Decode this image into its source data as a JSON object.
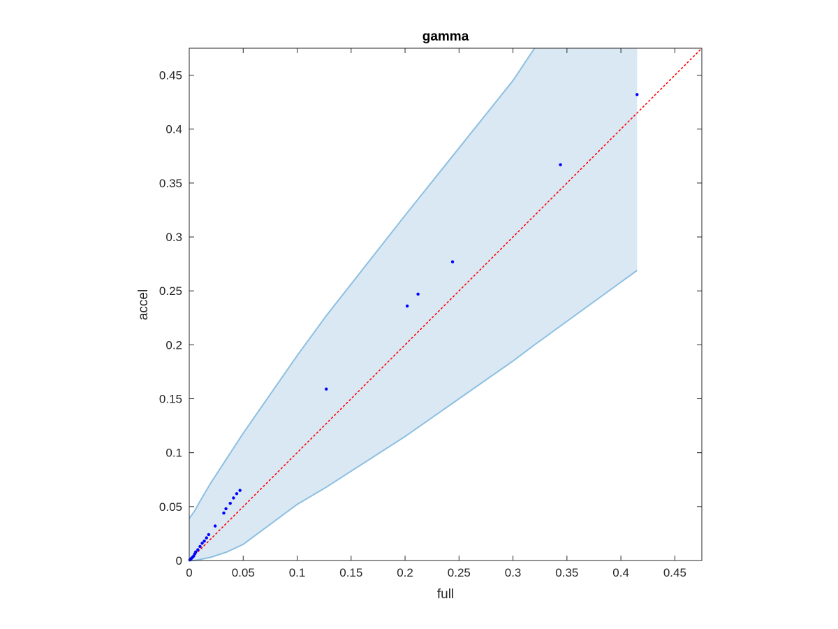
{
  "chart_data": {
    "type": "scatter",
    "title": "gamma",
    "xlabel": "full",
    "ylabel": "accel",
    "xlim": [
      0,
      0.475
    ],
    "ylim": [
      0,
      0.475
    ],
    "xticks": [
      0,
      0.05,
      0.1,
      0.15,
      0.2,
      0.25,
      0.3,
      0.35,
      0.4,
      0.45
    ],
    "xtick_labels": [
      "0",
      "0.05",
      "0.1",
      "0.15",
      "0.2",
      "0.25",
      "0.3",
      "0.35",
      "0.4",
      "0.45"
    ],
    "yticks": [
      0,
      0.05,
      0.1,
      0.15,
      0.2,
      0.25,
      0.3,
      0.35,
      0.4,
      0.45
    ],
    "ytick_labels": [
      "0",
      "0.05",
      "0.1",
      "0.15",
      "0.2",
      "0.25",
      "0.3",
      "0.35",
      "0.4",
      "0.45"
    ],
    "grid": false,
    "colors": {
      "points": "#0000ff",
      "reference_line": "#ff0000",
      "band_fill": "#dae8f4",
      "band_edge": "#8cbfe0",
      "axes": "#262626"
    },
    "series": [
      {
        "type": "scatter",
        "x": [
          0.0005,
          0.001,
          0.0015,
          0.002,
          0.003,
          0.004,
          0.005,
          0.006,
          0.008,
          0.01,
          0.012,
          0.014,
          0.016,
          0.018,
          0.024,
          0.032,
          0.034,
          0.038,
          0.041,
          0.044,
          0.047,
          0.127,
          0.202,
          0.212,
          0.244,
          0.344,
          0.415
        ],
        "y": [
          0.0005,
          0.001,
          0.0015,
          0.002,
          0.003,
          0.004,
          0.006,
          0.008,
          0.01,
          0.013,
          0.016,
          0.018,
          0.021,
          0.024,
          0.032,
          0.044,
          0.048,
          0.053,
          0.058,
          0.062,
          0.065,
          0.159,
          0.236,
          0.247,
          0.277,
          0.367,
          0.432
        ]
      },
      {
        "type": "line",
        "style": "dotted",
        "x": [
          0,
          0.475
        ],
        "y": [
          0,
          0.475
        ]
      },
      {
        "type": "area",
        "x": [
          0,
          0.005,
          0.01,
          0.02,
          0.035,
          0.05,
          0.1,
          0.127,
          0.2,
          0.3,
          0.32,
          0.415
        ],
        "upper": [
          0.039,
          0.046,
          0.055,
          0.072,
          0.095,
          0.118,
          0.19,
          0.227,
          0.32,
          0.445,
          0.475,
          0.475
        ],
        "lower": [
          0,
          0,
          0.001,
          0.003,
          0.008,
          0.015,
          0.052,
          0.068,
          0.115,
          0.185,
          0.2,
          0.269
        ]
      }
    ]
  }
}
